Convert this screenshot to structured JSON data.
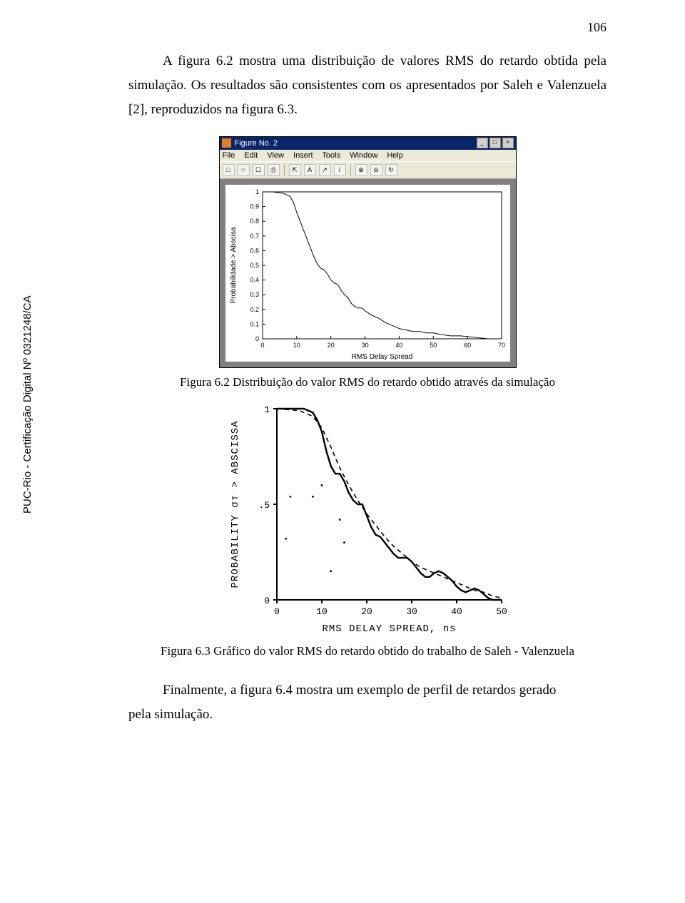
{
  "page_number": "106",
  "para1": "A figura 6.2 mostra uma distribuição de valores RMS do retardo obtida pela simulação. Os resultados são consistentes com os apresentados por Saleh e Valenzuela [2], reproduzidos na figura 6.3.",
  "para2_a": "Finalmente, a figura 6.4 mostra um exemplo de perfil de retardos gerado",
  "para2_b": "pela simulação.",
  "caption1": "Figura 6.2 Distribuição do valor RMS do retardo obtido através da simulação",
  "caption2": "Figura 6.3 Gráfico do valor RMS do retardo obtido do trabalho de Saleh - Valenzuela",
  "side_text": "PUC-Rio - Certificação Digital Nº 0321248/CA",
  "matlab": {
    "title": "Figure No. 2",
    "menus": [
      "File",
      "Edit",
      "View",
      "Insert",
      "Tools",
      "Window",
      "Help"
    ],
    "toolbar": [
      "□",
      "☞",
      "☐",
      "⎙",
      "⇱",
      "A",
      "↗",
      "/",
      "⊕",
      "⊖",
      "↻"
    ]
  },
  "chart1": {
    "type": "line",
    "xlabel": "RMS Delay Spread",
    "ylabel": "Probabilidade > Abscisa",
    "xlim": [
      0,
      70
    ],
    "ylim": [
      0,
      1
    ],
    "xtick_step": 10,
    "ytick_step": 0.1,
    "axis_fontsize": 9,
    "label_fontsize": 10,
    "line_color": "#000000",
    "line_width": 1,
    "background_color": "#ffffff",
    "points": [
      [
        0,
        1.0
      ],
      [
        3,
        1.0
      ],
      [
        6,
        0.99
      ],
      [
        8,
        0.97
      ],
      [
        9,
        0.93
      ],
      [
        10,
        0.86
      ],
      [
        11,
        0.8
      ],
      [
        12,
        0.74
      ],
      [
        13,
        0.68
      ],
      [
        14,
        0.62
      ],
      [
        15,
        0.56
      ],
      [
        16,
        0.51
      ],
      [
        17,
        0.48
      ],
      [
        18,
        0.47
      ],
      [
        19,
        0.44
      ],
      [
        20,
        0.4
      ],
      [
        21,
        0.38
      ],
      [
        22,
        0.37
      ],
      [
        23,
        0.33
      ],
      [
        24,
        0.3
      ],
      [
        25,
        0.28
      ],
      [
        26,
        0.24
      ],
      [
        27,
        0.22
      ],
      [
        28,
        0.21
      ],
      [
        29,
        0.21
      ],
      [
        30,
        0.19
      ],
      [
        32,
        0.16
      ],
      [
        34,
        0.14
      ],
      [
        36,
        0.11
      ],
      [
        38,
        0.09
      ],
      [
        40,
        0.07
      ],
      [
        42,
        0.06
      ],
      [
        44,
        0.05
      ],
      [
        46,
        0.05
      ],
      [
        48,
        0.04
      ],
      [
        50,
        0.04
      ],
      [
        52,
        0.03
      ],
      [
        55,
        0.02
      ],
      [
        58,
        0.02
      ],
      [
        62,
        0.01
      ],
      [
        66,
        0.0
      ],
      [
        70,
        0.0
      ]
    ]
  },
  "chart2": {
    "type": "line",
    "xlabel": "RMS DELAY SPREAD,      ns",
    "ylabel": "PROBABILITY σᴛ  > ABSCISSA",
    "xlim": [
      0,
      50
    ],
    "ylim": [
      0,
      1
    ],
    "xticks": [
      0,
      10,
      20,
      30,
      40,
      50
    ],
    "yticks": [
      0,
      0.5,
      1
    ],
    "ytick_labels": [
      "0",
      ".5",
      "1"
    ],
    "axis_fontsize": 13,
    "label_fontsize": 14,
    "background_color": "#ffffff",
    "tick_len": 5,
    "line_solid": {
      "color": "#000000",
      "width": 2.4,
      "points": [
        [
          0,
          1.0
        ],
        [
          6,
          1.0
        ],
        [
          8,
          0.98
        ],
        [
          9,
          0.94
        ],
        [
          10,
          0.88
        ],
        [
          11,
          0.78
        ],
        [
          12,
          0.7
        ],
        [
          13,
          0.66
        ],
        [
          14,
          0.66
        ],
        [
          15,
          0.62
        ],
        [
          16,
          0.56
        ],
        [
          17,
          0.52
        ],
        [
          18,
          0.5
        ],
        [
          19,
          0.5
        ],
        [
          20,
          0.44
        ],
        [
          21,
          0.38
        ],
        [
          22,
          0.34
        ],
        [
          23,
          0.33
        ],
        [
          24,
          0.3
        ],
        [
          25,
          0.27
        ],
        [
          26,
          0.24
        ],
        [
          27,
          0.22
        ],
        [
          28,
          0.22
        ],
        [
          29,
          0.22
        ],
        [
          30,
          0.2
        ],
        [
          31,
          0.17
        ],
        [
          32,
          0.14
        ],
        [
          33,
          0.12
        ],
        [
          34,
          0.12
        ],
        [
          35,
          0.14
        ],
        [
          36,
          0.15
        ],
        [
          37,
          0.14
        ],
        [
          38,
          0.12
        ],
        [
          39,
          0.1
        ],
        [
          40,
          0.07
        ],
        [
          41,
          0.05
        ],
        [
          42,
          0.04
        ],
        [
          43,
          0.05
        ],
        [
          44,
          0.06
        ],
        [
          45,
          0.05
        ],
        [
          46,
          0.03
        ],
        [
          47,
          0.01
        ],
        [
          48,
          0.0
        ],
        [
          50,
          0.0
        ]
      ]
    },
    "line_dashed": {
      "color": "#000000",
      "width": 1.6,
      "dash": "6,5",
      "points": [
        [
          0,
          1.0
        ],
        [
          5,
          0.99
        ],
        [
          8,
          0.96
        ],
        [
          10,
          0.9
        ],
        [
          12,
          0.8
        ],
        [
          14,
          0.69
        ],
        [
          16,
          0.6
        ],
        [
          18,
          0.52
        ],
        [
          20,
          0.45
        ],
        [
          22,
          0.39
        ],
        [
          24,
          0.33
        ],
        [
          26,
          0.28
        ],
        [
          28,
          0.24
        ],
        [
          30,
          0.2
        ],
        [
          32,
          0.17
        ],
        [
          34,
          0.15
        ],
        [
          36,
          0.13
        ],
        [
          38,
          0.11
        ],
        [
          40,
          0.09
        ],
        [
          42,
          0.07
        ],
        [
          44,
          0.05
        ],
        [
          46,
          0.04
        ],
        [
          48,
          0.02
        ],
        [
          50,
          0.01
        ]
      ]
    },
    "scatter_dots": [
      [
        3,
        0.54
      ],
      [
        8,
        0.54
      ],
      [
        10,
        0.6
      ],
      [
        14,
        0.42
      ],
      [
        15,
        0.3
      ],
      [
        12,
        0.15
      ],
      [
        2,
        0.32
      ]
    ]
  }
}
